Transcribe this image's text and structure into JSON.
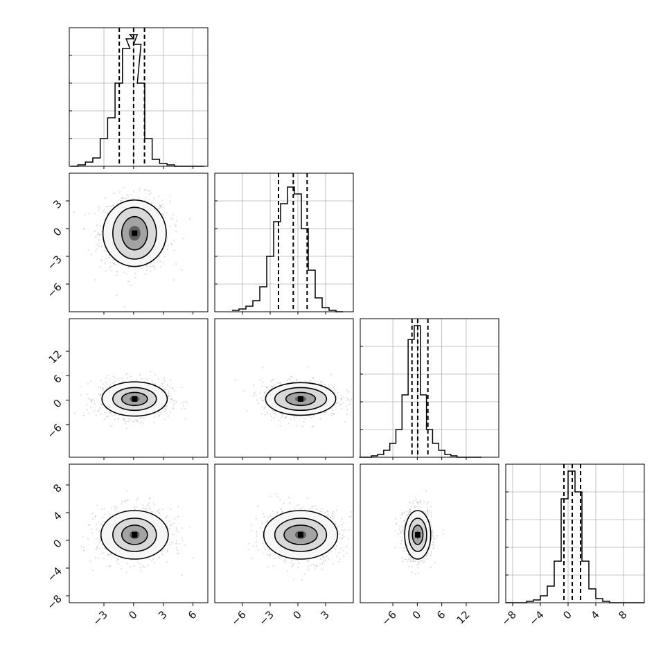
{
  "chart_data": {
    "type": "corner",
    "title": "",
    "params": [
      {
        "label": "",
        "range": [
          -6.5,
          7.5
        ],
        "ticks": [
          -3,
          0,
          3,
          6
        ],
        "tick_labels": [
          "−3",
          "0",
          "3",
          "6"
        ],
        "quantiles": [
          -1.45,
          0,
          1.1
        ]
      },
      {
        "label": "",
        "range": [
          -9,
          6
        ],
        "ticks": [
          -6,
          -3,
          0,
          3
        ],
        "tick_labels": [
          "−6",
          "−3",
          "0",
          "3"
        ],
        "quantiles": [
          -2.1,
          -0.5,
          1.0
        ]
      },
      {
        "label": "",
        "range": [
          -14,
          20
        ],
        "ticks": [
          -6,
          0,
          6,
          12
        ],
        "tick_labels": [
          "−6",
          "0",
          "6",
          "12"
        ],
        "quantiles": [
          -1.3,
          0.1,
          2.6
        ]
      },
      {
        "label": "",
        "range": [
          -9,
          11
        ],
        "ticks": [
          -8,
          -4,
          0,
          4,
          8
        ],
        "tick_labels": [
          "−8",
          "−4",
          "0",
          "4",
          "8"
        ],
        "quantiles": [
          -0.6,
          0.6,
          1.8
        ]
      }
    ],
    "histograms": [
      {
        "x": [
          -6.0,
          -5.25,
          -4.5,
          -3.75,
          -3.0,
          -2.25,
          -1.5,
          -0.75,
          -0.375,
          0.0,
          0.375,
          0.75,
          1.5,
          2.25,
          3.0,
          3.75,
          4.5,
          5.25,
          6.0,
          6.75
        ],
        "density": [
          0.0,
          0.01,
          0.03,
          0.06,
          0.2,
          0.35,
          0.6,
          0.85,
          0.92,
          0.95,
          0.88,
          0.6,
          0.2,
          0.05,
          0.02,
          0.01,
          0.0,
          0.0,
          0.0,
          0.0
        ]
      },
      {
        "x": [
          -6.75,
          -6.0,
          -5.25,
          -4.5,
          -3.75,
          -3.0,
          -2.25,
          -1.5,
          -0.75,
          0.0,
          0.75,
          1.5,
          2.25,
          3.0,
          3.75,
          4.5
        ],
        "density": [
          0.01,
          0.02,
          0.04,
          0.08,
          0.18,
          0.4,
          0.65,
          0.78,
          0.9,
          0.85,
          0.6,
          0.3,
          0.1,
          0.03,
          0.01,
          0.0
        ]
      },
      {
        "x": [
          -13.5,
          -12,
          -10.5,
          -9,
          -7.5,
          -6,
          -4.5,
          -3,
          -1.5,
          0,
          1.5,
          3,
          4.5,
          6,
          7.5,
          9,
          10.5,
          12,
          13.5,
          15
        ],
        "density": [
          0.0,
          0.0,
          0.01,
          0.02,
          0.05,
          0.1,
          0.2,
          0.45,
          0.85,
          0.95,
          0.45,
          0.2,
          0.1,
          0.05,
          0.02,
          0.01,
          0.0,
          0.0,
          0.0,
          0.0
        ]
      },
      {
        "x": [
          -8.5,
          -7.5,
          -6.5,
          -5.5,
          -4.5,
          -3.5,
          -2.5,
          -1.5,
          -0.5,
          0.5,
          1.5,
          2.5,
          3.5,
          4.5,
          5.5,
          6.5,
          7.5,
          8.5,
          9.5,
          10.5
        ],
        "density": [
          0.0,
          0.0,
          0.0,
          0.01,
          0.02,
          0.05,
          0.12,
          0.3,
          0.75,
          0.95,
          0.8,
          0.3,
          0.1,
          0.03,
          0.01,
          0.0,
          0.0,
          0.0,
          0.0,
          0.0
        ]
      }
    ],
    "pairs": [
      {
        "x_param": 0,
        "y_param": 1,
        "center": [
          0.1,
          -0.5
        ],
        "contour_radii": [
          [
            0.6,
            0.8
          ],
          [
            1.3,
            1.8
          ],
          [
            2.2,
            2.8
          ],
          [
            3.2,
            3.6
          ]
        ]
      },
      {
        "x_param": 0,
        "y_param": 2,
        "center": [
          0.1,
          0.3
        ],
        "contour_radii": [
          [
            0.5,
            0.7
          ],
          [
            1.3,
            1.6
          ],
          [
            2.2,
            2.8
          ],
          [
            3.3,
            4.2
          ]
        ]
      },
      {
        "x_param": 1,
        "y_param": 2,
        "center": [
          0.3,
          0.3
        ],
        "contour_radii": [
          [
            0.6,
            0.7
          ],
          [
            1.6,
            1.6
          ],
          [
            2.8,
            2.8
          ],
          [
            3.8,
            4.0
          ]
        ]
      },
      {
        "x_param": 0,
        "y_param": 3,
        "center": [
          0.1,
          0.8
        ],
        "contour_radii": [
          [
            0.5,
            0.6
          ],
          [
            1.3,
            1.4
          ],
          [
            2.2,
            2.4
          ],
          [
            3.4,
            3.5
          ]
        ]
      },
      {
        "x_param": 1,
        "y_param": 3,
        "center": [
          0.3,
          0.8
        ],
        "contour_radii": [
          [
            0.6,
            0.6
          ],
          [
            1.8,
            1.4
          ],
          [
            2.8,
            2.4
          ],
          [
            4.0,
            3.5
          ]
        ]
      },
      {
        "x_param": 2,
        "y_param": 3,
        "center": [
          0.1,
          0.8
        ],
        "contour_radii": [
          [
            0.4,
            0.6
          ],
          [
            1.3,
            1.4
          ],
          [
            2.2,
            2.4
          ],
          [
            3.2,
            3.5
          ]
        ]
      }
    ],
    "grid": true,
    "colors": {
      "line": "#000000",
      "grid": "#b0b0b0",
      "points": "#b3b3b3",
      "density_dark": "#000000",
      "density_light": "#f7f7f7"
    }
  }
}
